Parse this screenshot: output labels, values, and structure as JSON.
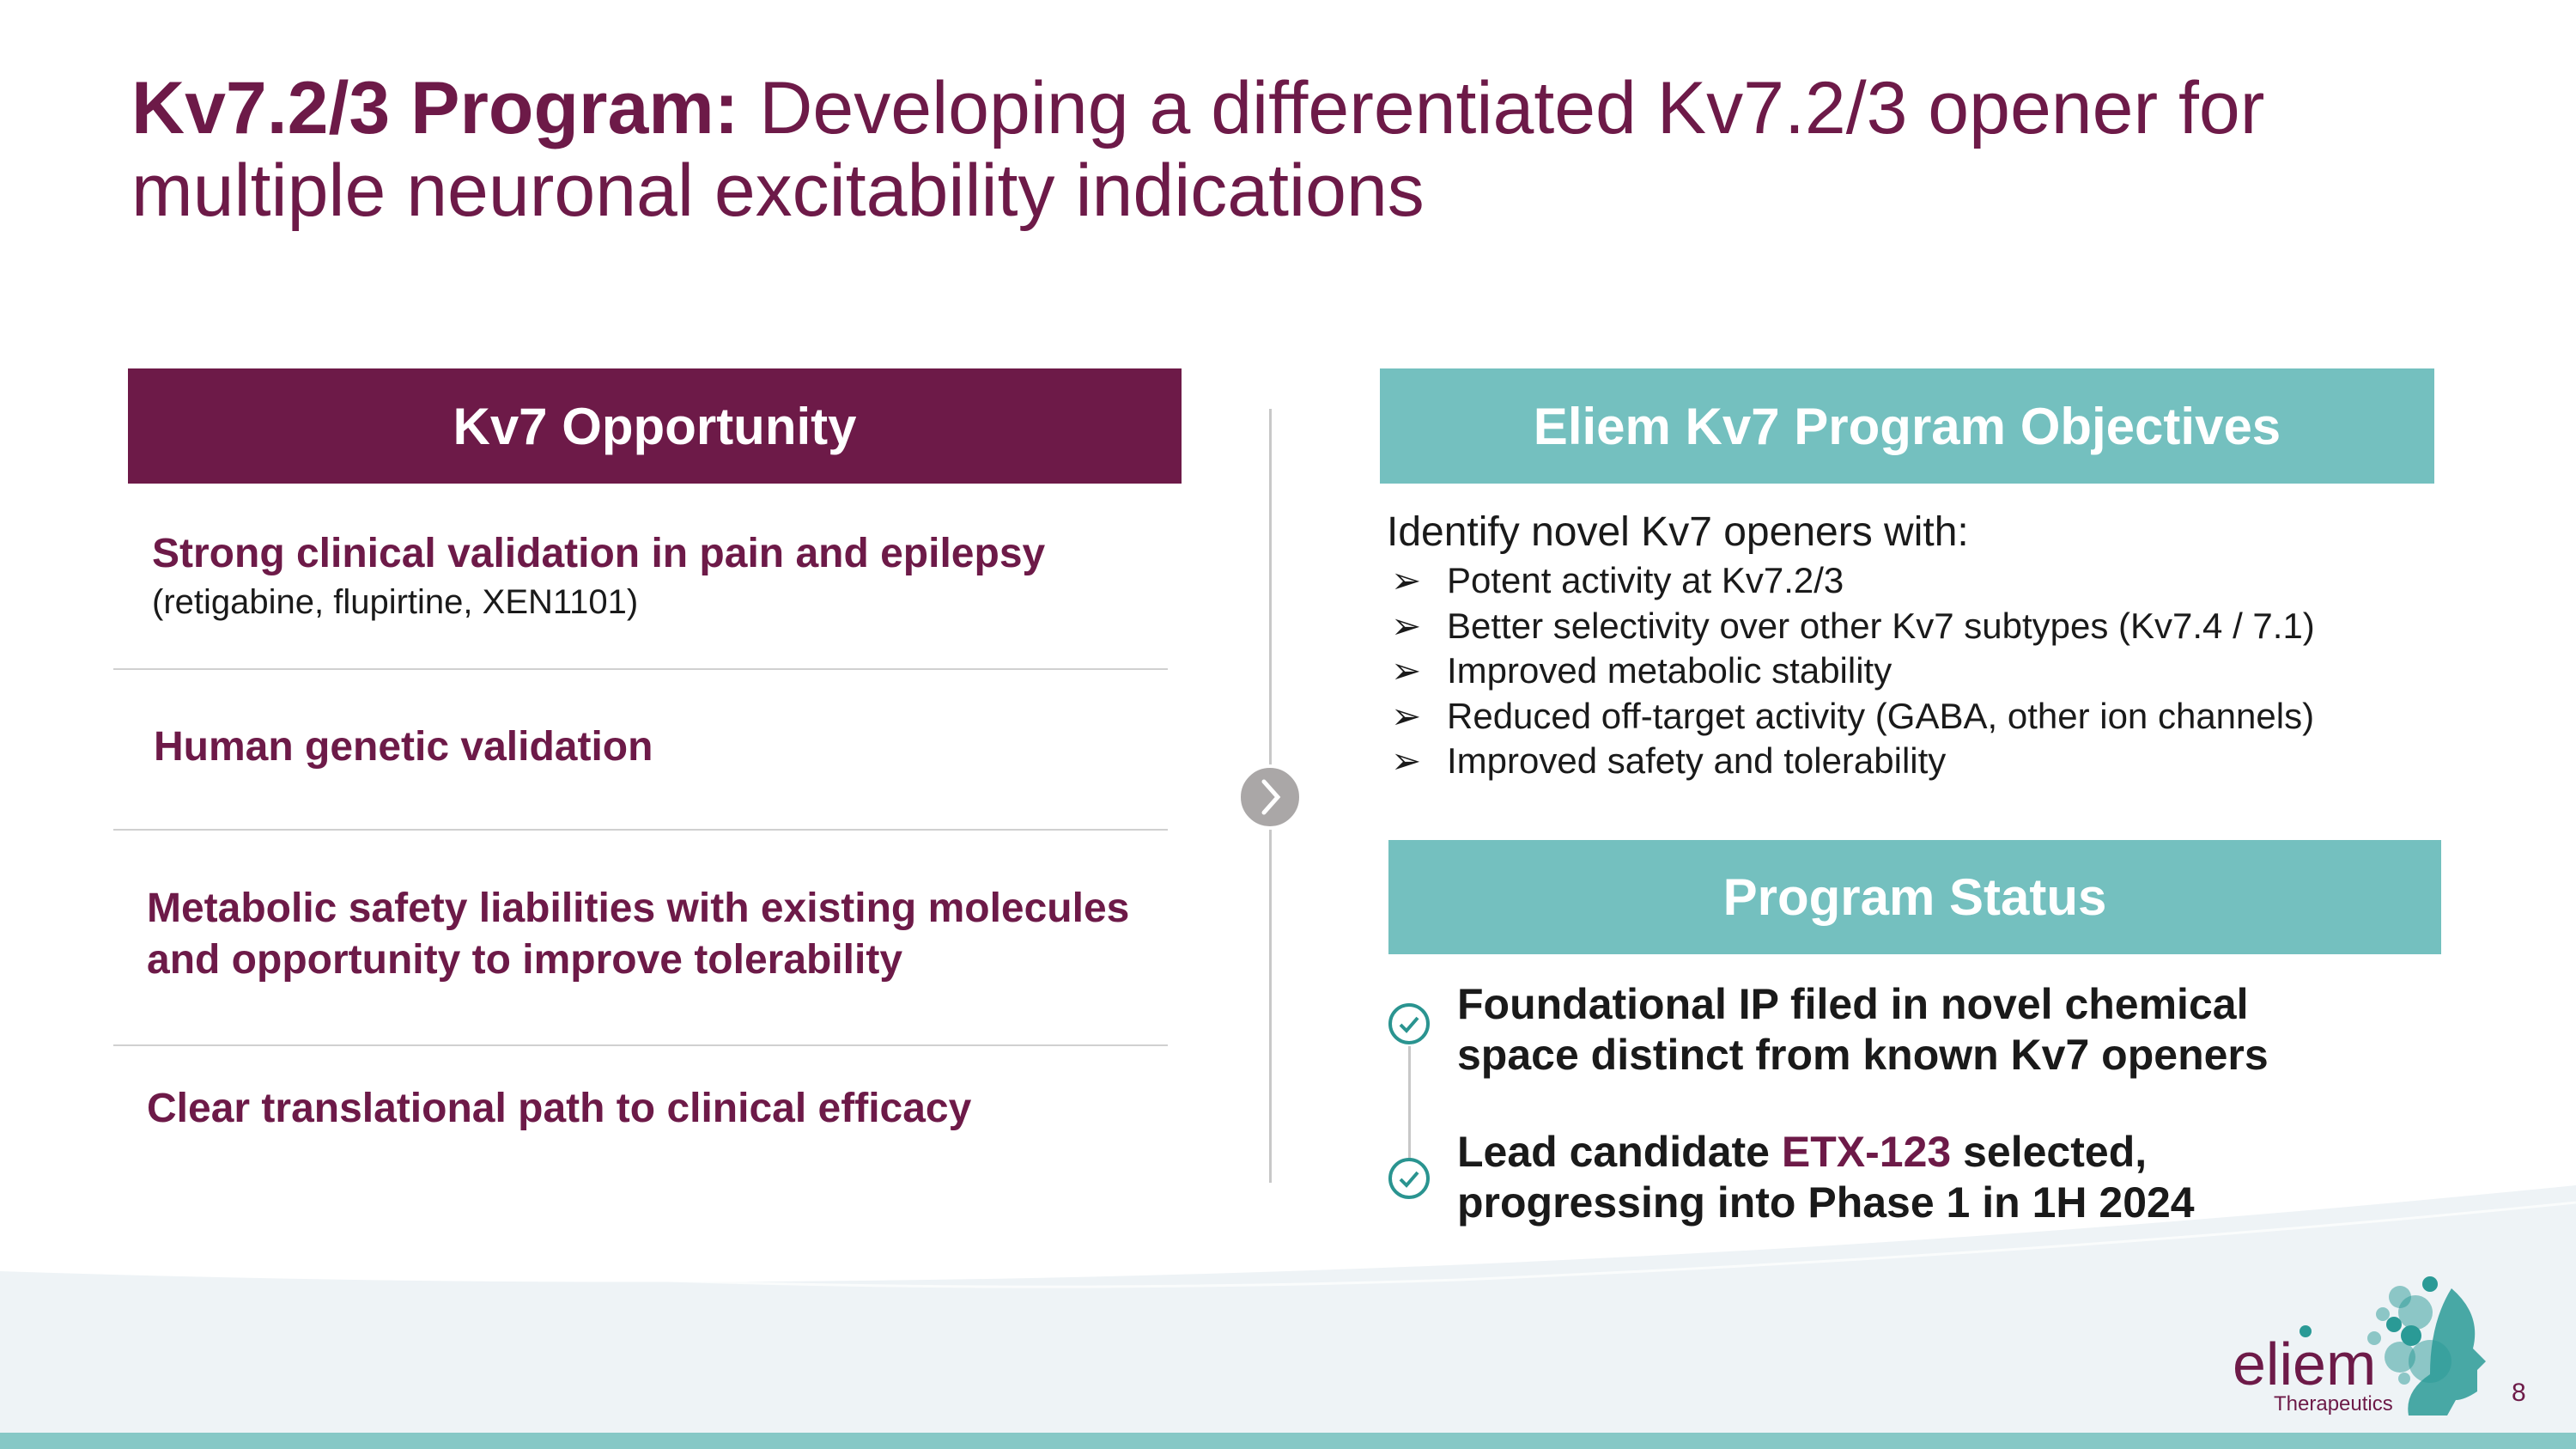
{
  "title": {
    "bold": "Kv7.2/3 Program:",
    "rest": " Developing a differentiated Kv7.2/3 opener for multiple neuronal excitability indications"
  },
  "left": {
    "header": "Kv7 Opportunity",
    "rows": [
      {
        "text": "Strong clinical validation in pain and epilepsy",
        "sub": "(retigabine, flupirtine, XEN1101)"
      },
      {
        "text": "Human genetic validation"
      },
      {
        "text": "Metabolic safety liabilities with existing molecules and opportunity to improve tolerability"
      },
      {
        "text": "Clear translational path to clinical efficacy"
      }
    ]
  },
  "right": {
    "header": "Eliem Kv7 Program Objectives",
    "intro": "Identify novel Kv7 openers with:",
    "bullets": [
      "Potent activity at Kv7.2/3",
      "Better selectivity over other Kv7 subtypes (Kv7.4 / 7.1)",
      "Improved metabolic stability",
      "Reduced off-target activity (GABA, other ion channels)",
      "Improved safety and tolerability"
    ],
    "bullet_icon": "arrowhead-bullet-icon"
  },
  "status": {
    "header": "Program Status",
    "items": [
      {
        "line1": "Foundational IP filed in novel chemical",
        "line2": "space distinct from known Kv7 openers"
      },
      {
        "pre": "Lead candidate ",
        "highlight": "ETX-123",
        "post": " selected,",
        "line2": "progressing into Phase 1 in 1H 2024"
      }
    ]
  },
  "logo": {
    "name": "eliem",
    "sub": "Therapeutics"
  },
  "page_number": "8",
  "colors": {
    "purple": "#6d1a48",
    "teal": "#74c0bf",
    "band": "#86c8c6"
  }
}
